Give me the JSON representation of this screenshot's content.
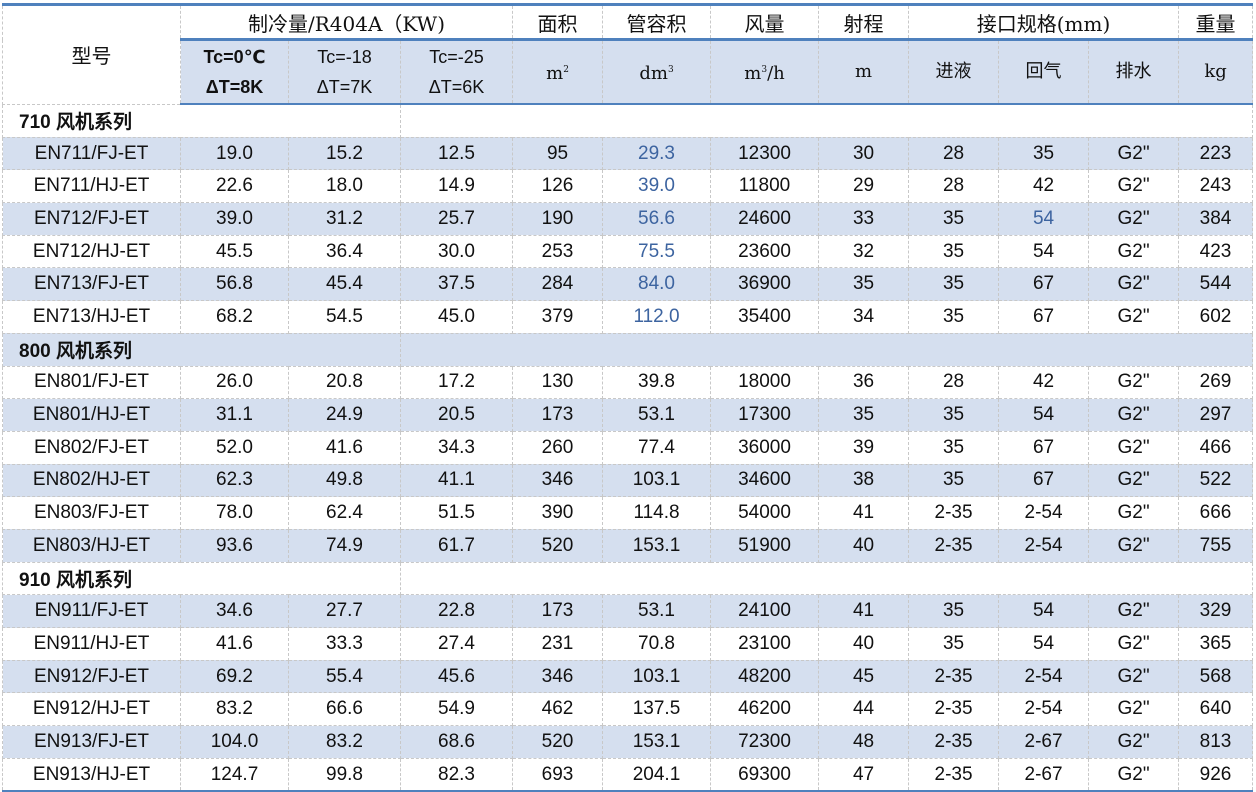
{
  "header": {
    "model": "型号",
    "capacity_group": "制冷量/R404A（KW)",
    "area": "面积",
    "tube_volume": "管容积",
    "airflow": "风量",
    "throw": "射程",
    "connection_group": "接口规格(mm)",
    "weight": "重量",
    "cap1_line1": "Tc=0℃",
    "cap1_line2": "ΔT=8K",
    "cap2_line1": "Tc=-18",
    "cap2_line2": "ΔT=7K",
    "cap3_line1": "Tc=-25",
    "cap3_line2": "ΔT=6K",
    "unit_area_base": "m",
    "unit_area_sup": "2",
    "unit_vol_base": "dm",
    "unit_vol_sup": "3",
    "unit_air_base": "m",
    "unit_air_sup": "3",
    "unit_air_tail": "/h",
    "unit_throw": "m",
    "inlet": "进液",
    "return_gas": "回气",
    "drain": "排水",
    "unit_weight": "kg"
  },
  "colors": {
    "band": "#d5dfef",
    "border_accent": "#4f81bd",
    "highlight_text": "#3d64a0"
  },
  "rows": [
    {
      "section": "710 风机系列"
    },
    {
      "cells": [
        "EN711/FJ-ET",
        "19.0",
        "15.2",
        "12.5",
        "95",
        "29.3",
        "12300",
        "30",
        "28",
        "35",
        "G2\"",
        "223"
      ],
      "hl": [
        5
      ]
    },
    {
      "cells": [
        "EN711/HJ-ET",
        "22.6",
        "18.0",
        "14.9",
        "126",
        "39.0",
        "11800",
        "29",
        "28",
        "42",
        "G2\"",
        "243"
      ],
      "hl": [
        5
      ]
    },
    {
      "cells": [
        "EN712/FJ-ET",
        "39.0",
        "31.2",
        "25.7",
        "190",
        "56.6",
        "24600",
        "33",
        "35",
        "54",
        "G2\"",
        "384"
      ],
      "hl": [
        5,
        9
      ]
    },
    {
      "cells": [
        "EN712/HJ-ET",
        "45.5",
        "36.4",
        "30.0",
        "253",
        "75.5",
        "23600",
        "32",
        "35",
        "54",
        "G2\"",
        "423"
      ],
      "hl": [
        5
      ]
    },
    {
      "cells": [
        "EN713/FJ-ET",
        "56.8",
        "45.4",
        "37.5",
        "284",
        "84.0",
        "36900",
        "35",
        "35",
        "67",
        "G2\"",
        "544"
      ],
      "hl": [
        5
      ]
    },
    {
      "cells": [
        "EN713/HJ-ET",
        "68.2",
        "54.5",
        "45.0",
        "379",
        "112.0",
        "35400",
        "34",
        "35",
        "67",
        "G2\"",
        "602"
      ],
      "hl": [
        5
      ]
    },
    {
      "section": "800 风机系列"
    },
    {
      "cells": [
        "EN801/FJ-ET",
        "26.0",
        "20.8",
        "17.2",
        "130",
        "39.8",
        "18000",
        "36",
        "28",
        "42",
        "G2\"",
        "269"
      ]
    },
    {
      "cells": [
        "EN801/HJ-ET",
        "31.1",
        "24.9",
        "20.5",
        "173",
        "53.1",
        "17300",
        "35",
        "35",
        "54",
        "G2\"",
        "297"
      ]
    },
    {
      "cells": [
        "EN802/FJ-ET",
        "52.0",
        "41.6",
        "34.3",
        "260",
        "77.4",
        "36000",
        "39",
        "35",
        "67",
        "G2\"",
        "466"
      ]
    },
    {
      "cells": [
        "EN802/HJ-ET",
        "62.3",
        "49.8",
        "41.1",
        "346",
        "103.1",
        "34600",
        "38",
        "35",
        "67",
        "G2\"",
        "522"
      ]
    },
    {
      "cells": [
        "EN803/FJ-ET",
        "78.0",
        "62.4",
        "51.5",
        "390",
        "114.8",
        "54000",
        "41",
        "2-35",
        "2-54",
        "G2\"",
        "666"
      ]
    },
    {
      "cells": [
        "EN803/HJ-ET",
        "93.6",
        "74.9",
        "61.7",
        "520",
        "153.1",
        "51900",
        "40",
        "2-35",
        "2-54",
        "G2\"",
        "755"
      ]
    },
    {
      "section": "910 风机系列"
    },
    {
      "cells": [
        "EN911/FJ-ET",
        "34.6",
        "27.7",
        "22.8",
        "173",
        "53.1",
        "24100",
        "41",
        "35",
        "54",
        "G2\"",
        "329"
      ]
    },
    {
      "cells": [
        "EN911/HJ-ET",
        "41.6",
        "33.3",
        "27.4",
        "231",
        "70.8",
        "23100",
        "40",
        "35",
        "54",
        "G2\"",
        "365"
      ]
    },
    {
      "cells": [
        "EN912/FJ-ET",
        "69.2",
        "55.4",
        "45.6",
        "346",
        "103.1",
        "48200",
        "45",
        "2-35",
        "2-54",
        "G2\"",
        "568"
      ]
    },
    {
      "cells": [
        "EN912/HJ-ET",
        "83.2",
        "66.6",
        "54.9",
        "462",
        "137.5",
        "46200",
        "44",
        "2-35",
        "2-54",
        "G2\"",
        "640"
      ]
    },
    {
      "cells": [
        "EN913/FJ-ET",
        "104.0",
        "83.2",
        "68.6",
        "520",
        "153.1",
        "72300",
        "48",
        "2-35",
        "2-67",
        "G2\"",
        "813"
      ]
    },
    {
      "cells": [
        "EN913/HJ-ET",
        "124.7",
        "99.8",
        "82.3",
        "693",
        "204.1",
        "69300",
        "47",
        "2-35",
        "2-67",
        "G2\"",
        "926"
      ]
    }
  ]
}
